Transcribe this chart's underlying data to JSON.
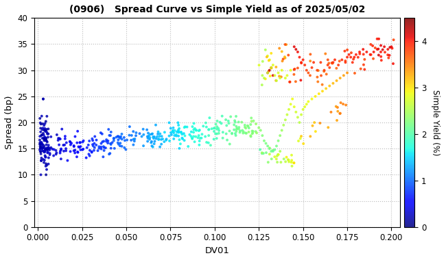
{
  "title": "(0906)   Spread Curve vs Simple Yield as of 2025/05/02",
  "xlabel": "DV01",
  "ylabel": "Spread (bp)",
  "colorbar_label": "Simple Yield (%)",
  "xlim": [
    -0.002,
    0.205
  ],
  "ylim": [
    0.0,
    40
  ],
  "xticks": [
    0.0,
    0.025,
    0.05,
    0.075,
    0.1,
    0.125,
    0.15,
    0.175,
    0.2
  ],
  "yticks": [
    0,
    5,
    10,
    15,
    20,
    25,
    30,
    35,
    40
  ],
  "colorbar_ticks": [
    0,
    1,
    2,
    3,
    4
  ],
  "vmin": 0.0,
  "vmax": 4.5,
  "background_color": "#ffffff",
  "grid_color": "#bbbbbb",
  "seed": 42,
  "n_dense": 200,
  "points_fixed": [
    [
      0.003,
      24.5,
      0.18
    ],
    [
      0.004,
      19.8,
      0.22
    ],
    [
      0.127,
      29.0,
      2.55
    ],
    [
      0.128,
      28.5,
      2.6
    ],
    [
      0.13,
      29.5,
      2.65
    ],
    [
      0.132,
      30.5,
      2.75
    ],
    [
      0.133,
      31.0,
      2.8
    ],
    [
      0.134,
      29.0,
      2.7
    ],
    [
      0.135,
      28.0,
      2.65
    ],
    [
      0.136,
      29.5,
      2.72
    ],
    [
      0.137,
      28.5,
      2.7
    ],
    [
      0.138,
      30.0,
      2.8
    ],
    [
      0.14,
      28.5,
      2.75
    ],
    [
      0.141,
      29.0,
      2.78
    ],
    [
      0.143,
      30.0,
      2.85
    ],
    [
      0.145,
      34.5,
      4.1
    ],
    [
      0.146,
      34.0,
      4.15
    ],
    [
      0.147,
      33.5,
      4.05
    ],
    [
      0.148,
      32.5,
      4.0
    ],
    [
      0.149,
      31.5,
      3.95
    ],
    [
      0.15,
      32.0,
      3.98
    ],
    [
      0.151,
      31.0,
      3.9
    ],
    [
      0.152,
      30.0,
      3.8
    ],
    [
      0.153,
      29.5,
      3.75
    ],
    [
      0.154,
      29.0,
      3.7
    ],
    [
      0.155,
      30.5,
      3.85
    ],
    [
      0.156,
      31.5,
      3.9
    ],
    [
      0.158,
      30.0,
      3.8
    ],
    [
      0.16,
      31.5,
      3.88
    ],
    [
      0.162,
      30.0,
      3.82
    ],
    [
      0.164,
      31.0,
      3.86
    ],
    [
      0.165,
      30.5,
      3.85
    ],
    [
      0.167,
      31.5,
      3.88
    ],
    [
      0.168,
      32.0,
      3.92
    ],
    [
      0.17,
      31.0,
      3.88
    ],
    [
      0.172,
      32.0,
      3.92
    ],
    [
      0.174,
      31.5,
      3.9
    ],
    [
      0.175,
      32.5,
      3.95
    ],
    [
      0.176,
      33.0,
      3.98
    ],
    [
      0.177,
      32.5,
      3.96
    ],
    [
      0.178,
      31.5,
      3.92
    ],
    [
      0.179,
      32.5,
      3.96
    ],
    [
      0.18,
      33.0,
      3.98
    ],
    [
      0.182,
      33.5,
      4.0
    ],
    [
      0.184,
      34.0,
      4.05
    ],
    [
      0.186,
      33.5,
      4.02
    ],
    [
      0.188,
      33.0,
      4.0
    ],
    [
      0.19,
      33.5,
      4.02
    ],
    [
      0.192,
      34.0,
      4.05
    ],
    [
      0.194,
      33.5,
      4.02
    ],
    [
      0.196,
      34.5,
      4.08
    ],
    [
      0.198,
      34.0,
      4.05
    ],
    [
      0.2,
      34.5,
      4.08
    ],
    [
      0.125,
      19.0,
      2.35
    ],
    [
      0.126,
      18.5,
      2.32
    ],
    [
      0.127,
      17.5,
      2.28
    ],
    [
      0.128,
      16.5,
      2.25
    ],
    [
      0.129,
      16.0,
      2.22
    ],
    [
      0.13,
      15.5,
      2.2
    ],
    [
      0.131,
      15.0,
      2.18
    ],
    [
      0.132,
      14.5,
      2.15
    ],
    [
      0.133,
      14.5,
      2.12
    ],
    [
      0.134,
      14.8,
      2.15
    ],
    [
      0.135,
      15.5,
      2.2
    ],
    [
      0.136,
      16.5,
      2.28
    ],
    [
      0.137,
      17.5,
      2.35
    ],
    [
      0.138,
      18.5,
      2.42
    ],
    [
      0.139,
      19.5,
      2.5
    ],
    [
      0.14,
      20.5,
      2.58
    ],
    [
      0.141,
      21.5,
      2.65
    ],
    [
      0.142,
      22.5,
      2.72
    ],
    [
      0.143,
      23.5,
      2.8
    ],
    [
      0.144,
      24.5,
      2.88
    ],
    [
      0.145,
      23.0,
      2.8
    ],
    [
      0.146,
      22.0,
      2.72
    ],
    [
      0.147,
      21.0,
      2.65
    ],
    [
      0.148,
      20.0,
      2.58
    ],
    [
      0.149,
      21.5,
      2.68
    ],
    [
      0.15,
      22.5,
      2.75
    ],
    [
      0.151,
      23.0,
      2.8
    ],
    [
      0.152,
      23.5,
      2.82
    ],
    [
      0.153,
      24.0,
      2.85
    ],
    [
      0.155,
      24.5,
      2.9
    ],
    [
      0.157,
      25.0,
      2.95
    ],
    [
      0.159,
      25.5,
      3.0
    ],
    [
      0.161,
      26.0,
      3.05
    ],
    [
      0.163,
      26.5,
      3.1
    ],
    [
      0.165,
      27.0,
      3.15
    ],
    [
      0.167,
      27.5,
      3.2
    ],
    [
      0.169,
      28.0,
      3.25
    ],
    [
      0.171,
      28.5,
      3.3
    ],
    [
      0.173,
      29.0,
      3.35
    ],
    [
      0.175,
      29.5,
      3.4
    ]
  ]
}
